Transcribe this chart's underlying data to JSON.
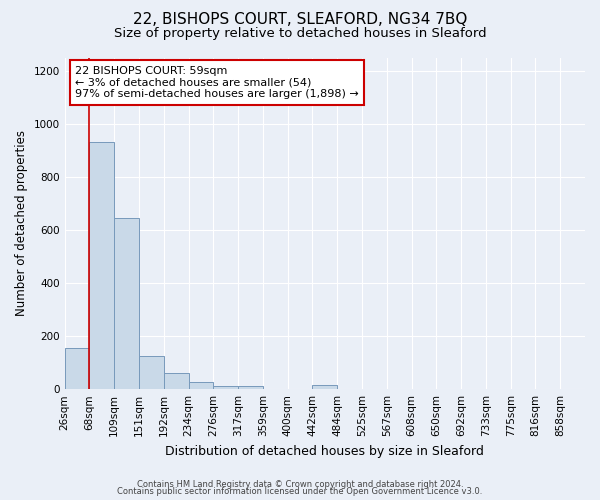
{
  "title": "22, BISHOPS COURT, SLEAFORD, NG34 7BQ",
  "subtitle": "Size of property relative to detached houses in Sleaford",
  "xlabel": "Distribution of detached houses by size in Sleaford",
  "ylabel": "Number of detached properties",
  "footer_line1": "Contains HM Land Registry data © Crown copyright and database right 2024.",
  "footer_line2": "Contains public sector information licensed under the Open Government Licence v3.0.",
  "bin_labels": [
    "26sqm",
    "68sqm",
    "109sqm",
    "151sqm",
    "192sqm",
    "234sqm",
    "276sqm",
    "317sqm",
    "359sqm",
    "400sqm",
    "442sqm",
    "484sqm",
    "525sqm",
    "567sqm",
    "608sqm",
    "650sqm",
    "692sqm",
    "733sqm",
    "775sqm",
    "816sqm",
    "858sqm"
  ],
  "bar_values": [
    155,
    930,
    645,
    125,
    62,
    28,
    12,
    12,
    0,
    0,
    14,
    0,
    0,
    0,
    0,
    0,
    0,
    0,
    0,
    0
  ],
  "bar_color": "#c9d9e8",
  "bar_edge_color": "#7799bb",
  "vline_position": 1.0,
  "vline_color": "#cc0000",
  "annotation_text": "22 BISHOPS COURT: 59sqm\n← 3% of detached houses are smaller (54)\n97% of semi-detached houses are larger (1,898) →",
  "annotation_box_color": "#ffffff",
  "annotation_box_edge_color": "#cc0000",
  "ylim": [
    0,
    1250
  ],
  "yticks": [
    0,
    200,
    400,
    600,
    800,
    1000,
    1200
  ],
  "background_color": "#eaeff7",
  "plot_bg_color": "#eaeff7",
  "grid_color": "#ffffff",
  "title_fontsize": 11,
  "subtitle_fontsize": 9.5,
  "axis_label_fontsize": 8.5,
  "tick_fontsize": 7.5,
  "annotation_fontsize": 8,
  "footer_fontsize": 6
}
